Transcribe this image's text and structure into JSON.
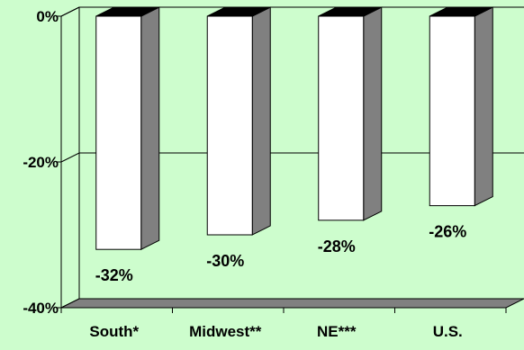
{
  "chart_data": {
    "type": "bar",
    "categories": [
      "South*",
      "Midwest**",
      "NE***",
      "U.S."
    ],
    "values": [
      -32,
      -30,
      -28,
      -26
    ],
    "data_labels": [
      "-32%",
      "-30%",
      "-28%",
      "-26%"
    ],
    "ylim": [
      -40,
      0
    ],
    "yticks": [
      0,
      -20,
      -40
    ],
    "ytick_labels": [
      "0%",
      "-20%",
      "-40%"
    ],
    "title": "",
    "xlabel": "",
    "ylabel": "",
    "grid": true,
    "style": "3d",
    "colors": {
      "background": "#cdfdcd",
      "bar_front": "#ffffff",
      "bar_side": "#808080",
      "bar_top": "#000000",
      "floor": "#808080",
      "gridline": "#000000"
    }
  }
}
